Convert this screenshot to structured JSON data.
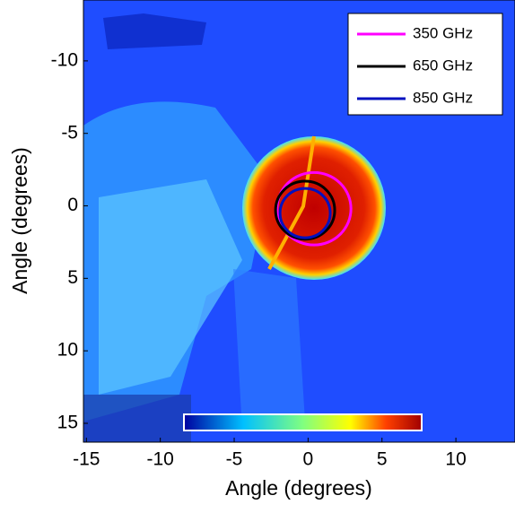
{
  "chart_data": {
    "type": "image",
    "xlabel": "Angle (degrees)",
    "ylabel": "Angle (degrees)",
    "xlim": [
      -15.2,
      14
    ],
    "ylim": [
      -14.2,
      16.3
    ],
    "y_inverted": true,
    "xticks": [
      -15,
      -10,
      -5,
      0,
      5,
      10
    ],
    "yticks": [
      -10,
      -5,
      0,
      5,
      10,
      15
    ],
    "legend": "upper right",
    "series": [
      {
        "name": "350 GHz",
        "color": "#ff00ff",
        "center": [
          0.4,
          0.2
        ],
        "radius": 2.5
      },
      {
        "name": "650 GHz",
        "color": "#000000",
        "center": [
          -0.2,
          0.3
        ],
        "radius": 2.0
      },
      {
        "name": "850 GHz",
        "color": "#0010c0",
        "center": [
          -0.2,
          0.5
        ],
        "radius": 1.7
      }
    ]
  }
}
